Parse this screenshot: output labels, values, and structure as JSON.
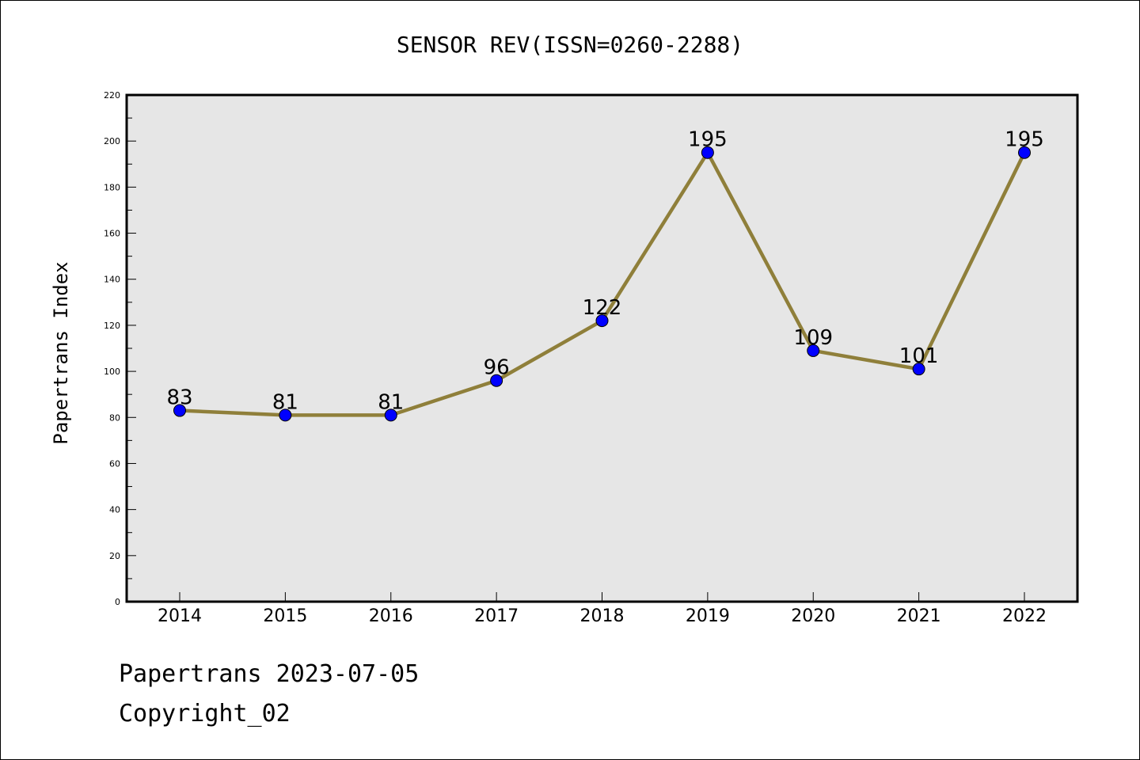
{
  "chart_data": {
    "type": "line",
    "title": "SENSOR REV(ISSN=0260-2288)",
    "xlabel": "",
    "ylabel": "Papertrans Index",
    "x": [
      "2014",
      "2015",
      "2016",
      "2017",
      "2018",
      "2019",
      "2020",
      "2021",
      "2022"
    ],
    "series": [
      {
        "values": [
          83,
          81,
          81,
          96,
          122,
          195,
          109,
          101,
          195
        ]
      }
    ],
    "ylim": [
      0,
      220
    ],
    "yticks": [
      0,
      20,
      40,
      60,
      80,
      100,
      120,
      140,
      160,
      180,
      200,
      220
    ],
    "grid": false,
    "data_labels": true,
    "line_color": "#8f7f3a",
    "marker_color": "#0000ff",
    "plot_background": "#e6e6e6"
  },
  "footer": {
    "line1": "Papertrans 2023-07-05",
    "line2": "Copyright_02"
  }
}
